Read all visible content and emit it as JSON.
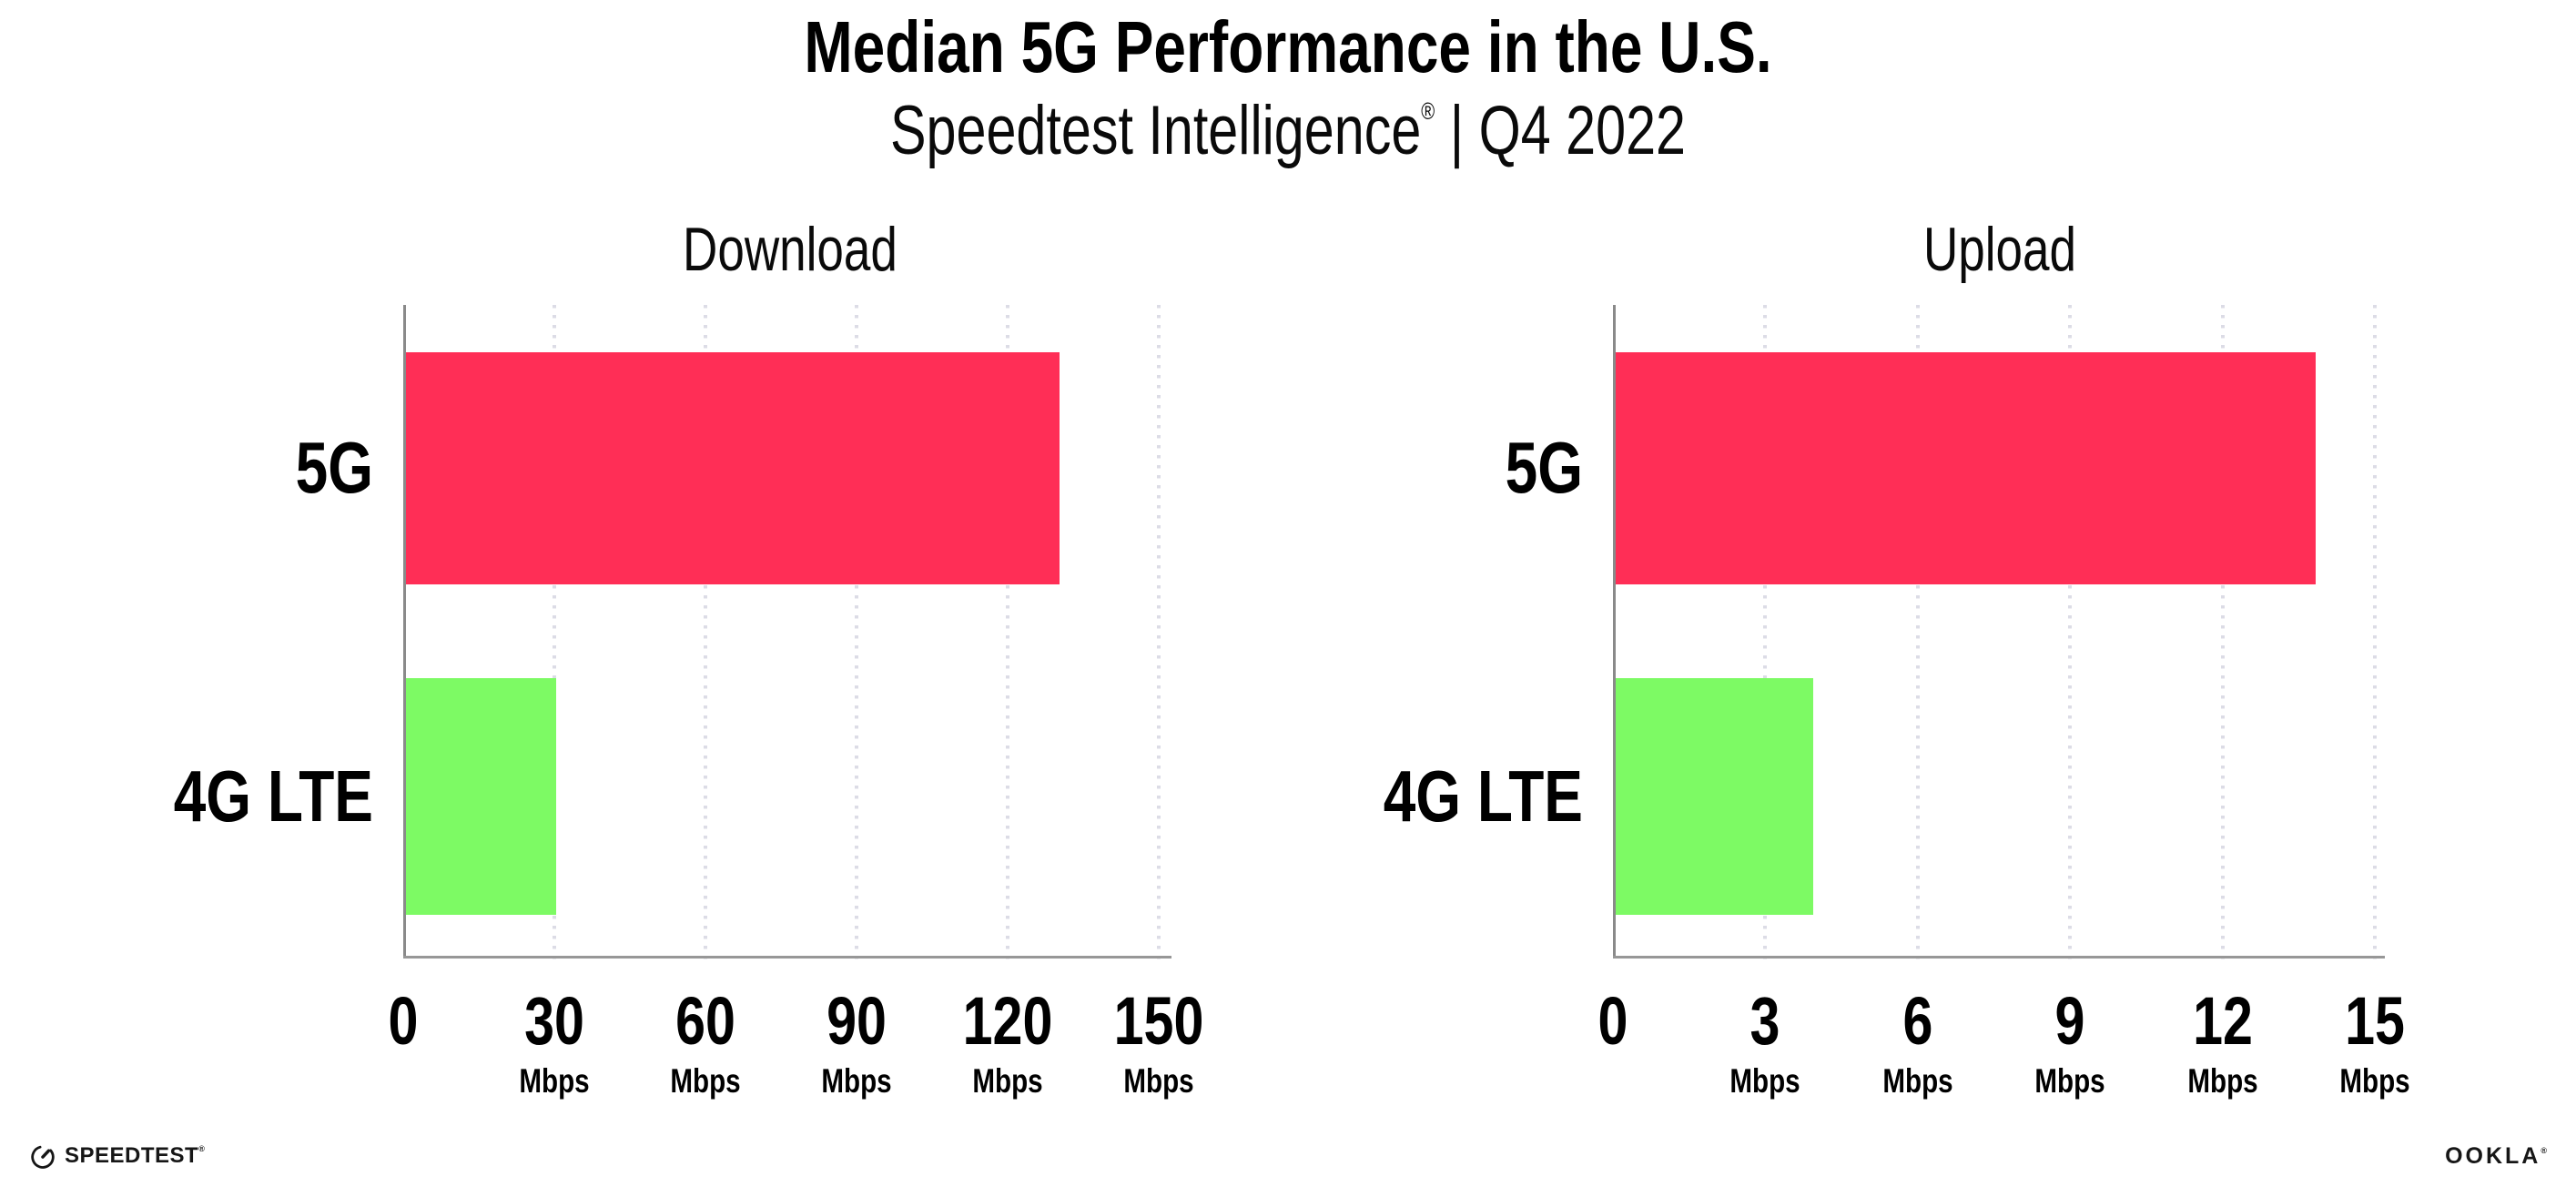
{
  "header": {
    "title": "Median 5G Performance in the U.S.",
    "subtitle": "Speedtest Intelligence",
    "subtitle_registered": "®",
    "subtitle_suffix": " | Q4 2022"
  },
  "chart_data": [
    {
      "id": "download",
      "type": "bar",
      "orientation": "horizontal",
      "title": "Download",
      "categories": [
        "5G",
        "4G LTE"
      ],
      "values": [
        130,
        30
      ],
      "unit": "Mbps",
      "xlim": [
        0,
        150
      ],
      "xticks": [
        0,
        30,
        60,
        90,
        120,
        150
      ],
      "bar_colors": [
        "#FF2E56",
        "#7DFA64"
      ],
      "grid": "dotted-vertical",
      "legend": "none"
    },
    {
      "id": "upload",
      "type": "bar",
      "orientation": "horizontal",
      "title": "Upload",
      "categories": [
        "5G",
        "4G LTE"
      ],
      "values": [
        13.8,
        3.9
      ],
      "unit": "Mbps",
      "xlim": [
        0,
        15
      ],
      "xticks": [
        0,
        3,
        6,
        9,
        12,
        15
      ],
      "bar_colors": [
        "#FF2E56",
        "#7DFA64"
      ],
      "grid": "dotted-vertical",
      "legend": "none"
    }
  ],
  "footer": {
    "speedtest_label": "SPEEDTEST",
    "speedtest_trademark": "®",
    "speedtest_icon": "gauge-icon",
    "ookla_label": "OOKLA",
    "ookla_trademark": "®"
  },
  "colors": {
    "bar_5g": "#FF2E56",
    "bar_4g_lte": "#7DFA64",
    "axis": "#8A8A8A",
    "gridline_dots": "#DCDCE6",
    "background": "#FFFFFF"
  }
}
